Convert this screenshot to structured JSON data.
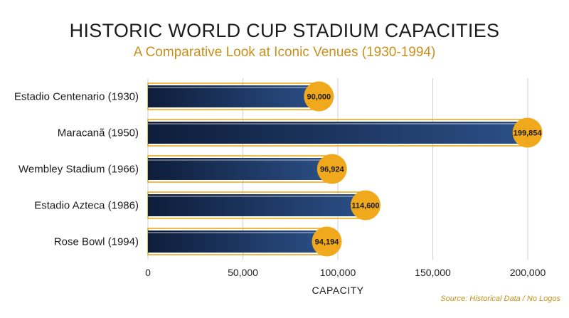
{
  "chart_data": {
    "type": "bar",
    "orientation": "horizontal",
    "title": "HISTORIC WORLD CUP STADIUM CAPACITIES",
    "subtitle": "A Comparative Look at Iconic Venues (1930-1994)",
    "xlabel": "CAPACITY",
    "ylabel": "",
    "categories": [
      "Estadio Centenario (1930)",
      "Maracanã (1950)",
      "Wembley Stadium (1966)",
      "Estadio Azteca (1986)",
      "Rose Bowl (1994)"
    ],
    "values": [
      90000,
      199854,
      96924,
      114600,
      94194
    ],
    "data_labels": [
      "90,000",
      "199,854",
      "96,924",
      "114,600",
      "94,194"
    ],
    "xlim": [
      0,
      200000
    ],
    "xticks": [
      0,
      50000,
      100000,
      150000,
      200000
    ],
    "xtick_labels": [
      "0",
      "50,000",
      "100,000",
      "150,000",
      "200,000"
    ],
    "grid": "vertical",
    "source": "Source: Historical Data / No Logos",
    "colors": {
      "bar_dark": "#0e1d3a",
      "bar_light": "#2b4f86",
      "accent": "#f0a81c",
      "grid": "#c9cfe0"
    }
  }
}
